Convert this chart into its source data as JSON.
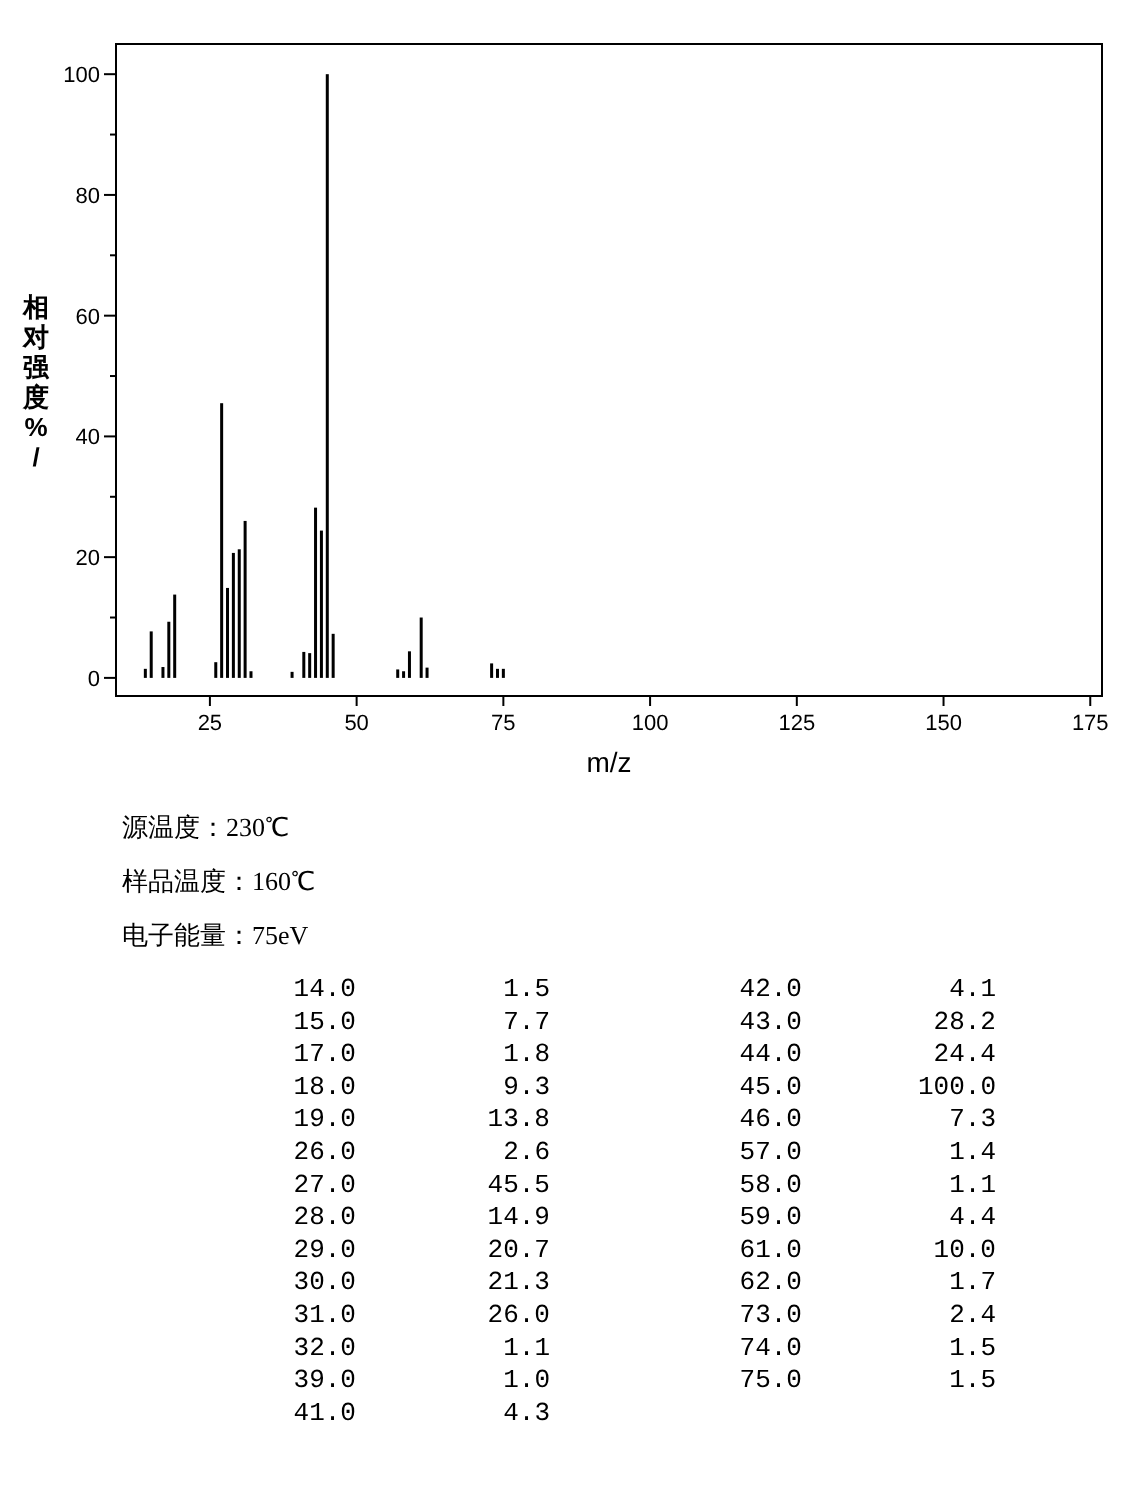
{
  "chart_data": {
    "type": "bar",
    "xlabel": "m/z",
    "ylabel": "相对强度%/",
    "x": [
      14,
      15,
      17,
      18,
      19,
      26,
      27,
      28,
      29,
      30,
      31,
      32,
      39,
      41,
      42,
      43,
      44,
      45,
      46,
      57,
      58,
      59,
      61,
      62,
      73,
      74,
      75
    ],
    "values": [
      1.5,
      7.7,
      1.8,
      9.3,
      13.8,
      2.6,
      45.5,
      14.9,
      20.7,
      21.3,
      26.0,
      1.1,
      1.0,
      4.3,
      4.1,
      28.2,
      24.4,
      100.0,
      7.3,
      1.4,
      1.1,
      4.4,
      10.0,
      1.7,
      2.4,
      1.5,
      1.5
    ],
    "color": "#000000",
    "xlim": [
      9,
      177
    ],
    "ylim": [
      -3,
      105
    ],
    "xticks": [
      25,
      50,
      75,
      100,
      125,
      150,
      175
    ],
    "yticks": [
      0,
      {
        "value": 10,
        "label": null
      },
      20,
      {
        "value": 30,
        "label": null
      },
      40,
      {
        "value": 50,
        "label": null
      },
      60,
      {
        "value": 70,
        "label": null
      },
      80,
      {
        "value": 90,
        "label": null
      },
      100
    ],
    "annotations": [
      "源温度：230℃",
      "样品温度：160℃",
      "电子能量：75eV",
      "14.0",
      "1.5",
      "15.0",
      "7.7",
      "17.0",
      "1.8",
      "18.0",
      "9.3",
      "19.0",
      "13.8",
      "26.0",
      "2.6",
      "27.0",
      "45.5",
      "28.0",
      "14.9",
      "29.0",
      "20.7",
      "30.0",
      "21.3",
      "31.0",
      "26.0",
      "32.0",
      "1.1",
      "39.0",
      "1.0",
      "41.0",
      "4.3",
      "42.0",
      "4.1",
      "43.0",
      "28.2",
      "44.0",
      "24.4",
      "45.0",
      "100.0",
      "46.0",
      "7.3",
      "57.0",
      "1.4",
      "58.0",
      "1.1",
      "59.0",
      "4.4",
      "61.0",
      "10.0",
      "62.0",
      "1.7",
      "73.0",
      "2.4",
      "74.0",
      "1.5",
      "75.0",
      "1.5"
    ]
  }
}
